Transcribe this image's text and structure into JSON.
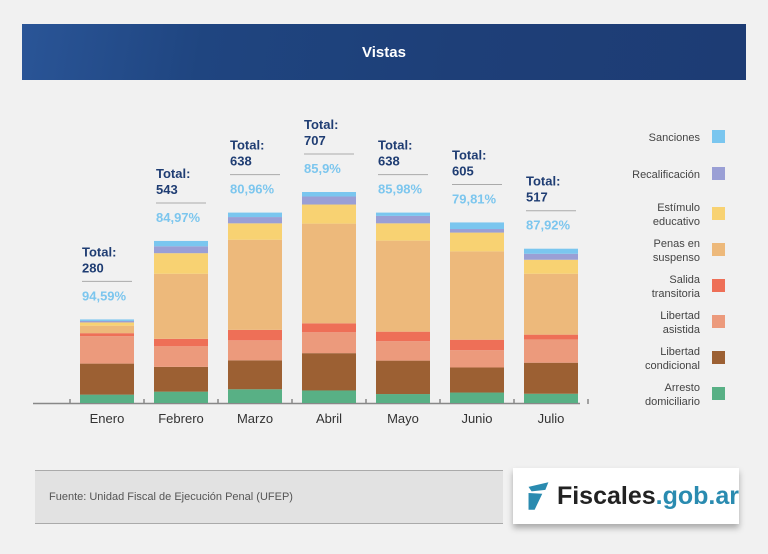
{
  "header": {
    "title": "Vistas"
  },
  "chart_data": {
    "type": "bar",
    "stacked": true,
    "title": "Vistas",
    "categories": [
      "Enero",
      "Febrero",
      "Marzo",
      "Abril",
      "Mayo",
      "Junio",
      "Julio"
    ],
    "totals_label": "Total:",
    "totals": [
      280,
      543,
      638,
      707,
      638,
      605,
      517
    ],
    "percentages": [
      "94,59%",
      "84,97%",
      "80,96%",
      "85,9%",
      "85,98%",
      "79,81%",
      "87,92%"
    ],
    "series": [
      {
        "name": "Arresto domiciliario",
        "color": "#58b085",
        "values": [
          28,
          38,
          46,
          42,
          30,
          35,
          31
        ]
      },
      {
        "name": "Libertad condicional",
        "color": "#9c6033",
        "values": [
          104,
          83,
          97,
          125,
          112,
          84,
          104
        ]
      },
      {
        "name": "Libertad asistida",
        "color": "#ec9a7c",
        "values": [
          92,
          69,
          67,
          70,
          65,
          58,
          78
        ]
      },
      {
        "name": "Salida transitoria",
        "color": "#ee6f57",
        "values": [
          10,
          25,
          35,
          30,
          32,
          35,
          16
        ]
      },
      {
        "name": "Penas en suspenso",
        "color": "#edb97b",
        "values": [
          25,
          218,
          302,
          334,
          305,
          296,
          204
        ]
      },
      {
        "name": "Estímulo educativo",
        "color": "#f8d272",
        "values": [
          11,
          69,
          55,
          64,
          58,
          63,
          47
        ]
      },
      {
        "name": "Recalificación",
        "color": "#9a9fd5",
        "values": [
          5,
          23,
          21,
          27,
          25,
          12,
          20
        ]
      },
      {
        "name": "Sanciones",
        "color": "#7ac6ef",
        "values": [
          5,
          18,
          15,
          15,
          11,
          22,
          17
        ]
      }
    ],
    "legend_position": "right",
    "grid": false
  },
  "footer": {
    "source": "Fuente: Unidad Fiscal de Ejecución Penal (UFEP)"
  },
  "logo": {
    "part1": "Fiscales",
    "part2": ".gob.ar"
  }
}
